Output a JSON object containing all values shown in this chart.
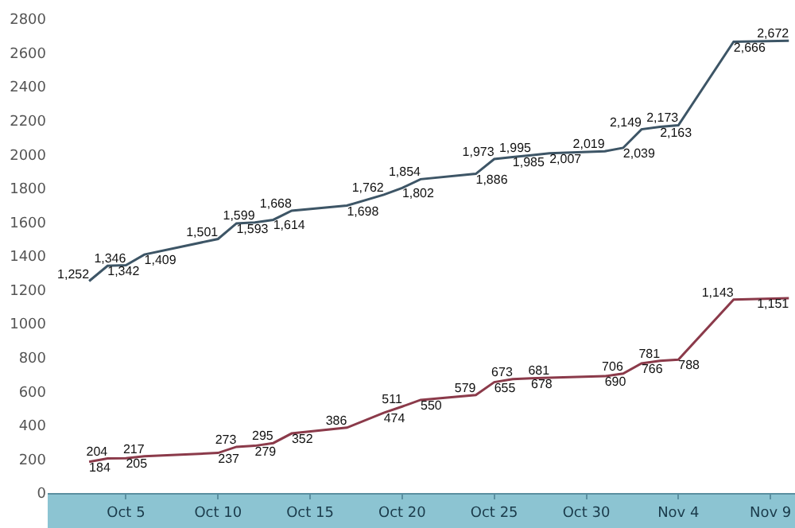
{
  "chart_data": {
    "type": "line",
    "x": [
      "--10-03",
      "--10-04",
      "--10-05",
      "--10-06",
      "--10-10",
      "--10-11",
      "--10-12",
      "--10-13",
      "--10-14",
      "--10-17",
      "--10-19",
      "--10-20",
      "--10-21",
      "--10-24",
      "--10-25",
      "--10-26",
      "--10-27",
      "--10-28",
      "--10-31",
      "--11-01",
      "--11-02",
      "--11-03",
      "--11-04",
      "--11-07",
      "--11-10"
    ],
    "series": [
      {
        "color": "#3d5566",
        "values": [
          1252,
          1342,
          1346,
          1409,
          1501,
          1593,
          1599,
          1614,
          1668,
          1698,
          1762,
          1802,
          1854,
          1886,
          1973,
          1985,
          1995,
          2007,
          2019,
          2039,
          2149,
          2163,
          2173,
          2666,
          2672
        ],
        "value_labels": [
          "1,252",
          "1,342",
          "1,346",
          "1,409",
          "1,501",
          "1,593",
          "1,599",
          "1,614",
          "1,668",
          "1,698",
          "1,762",
          "1,802",
          "1,854",
          "1,886",
          "1,973",
          "1,985",
          "1,995",
          "2,007",
          "2,019",
          "2,039",
          "2,149",
          "2,163",
          "2,173",
          "2,666",
          "2,672"
        ]
      },
      {
        "color": "#8b3a4a",
        "values": [
          184,
          204,
          205,
          217,
          237,
          273,
          279,
          295,
          352,
          386,
          474,
          511,
          550,
          579,
          655,
          673,
          678,
          681,
          690,
          706,
          766,
          781,
          788,
          1143,
          1151
        ],
        "value_labels": [
          "184",
          "204",
          "205",
          "217",
          "237",
          "273",
          "279",
          "295",
          "352",
          "386",
          "474",
          "511",
          "550",
          "579",
          "655",
          "673",
          "678",
          "681",
          "690",
          "706",
          "766",
          "781",
          "788",
          "1,143",
          "1,151"
        ]
      }
    ],
    "xlim": [
      "--09-30T18:00",
      "--11-10T08:00"
    ],
    "xticks": [
      {
        "value": "--10-05",
        "label": "Oct 5"
      },
      {
        "value": "--10-10",
        "label": "Oct 10"
      },
      {
        "value": "--10-15",
        "label": "Oct 15"
      },
      {
        "value": "--10-20",
        "label": "Oct 20"
      },
      {
        "value": "--10-25",
        "label": "Oct 25"
      },
      {
        "value": "--10-30",
        "label": "Oct 30"
      },
      {
        "value": "--11-04",
        "label": "Nov 4"
      },
      {
        "value": "--11-09",
        "label": "Nov 9"
      }
    ],
    "ylim": [
      0,
      2800
    ],
    "yticks": [
      0,
      200,
      400,
      600,
      800,
      1000,
      1200,
      1400,
      1600,
      1800,
      2000,
      2200,
      2400,
      2600,
      2800
    ],
    "marker": "none",
    "line_style": "solid"
  }
}
